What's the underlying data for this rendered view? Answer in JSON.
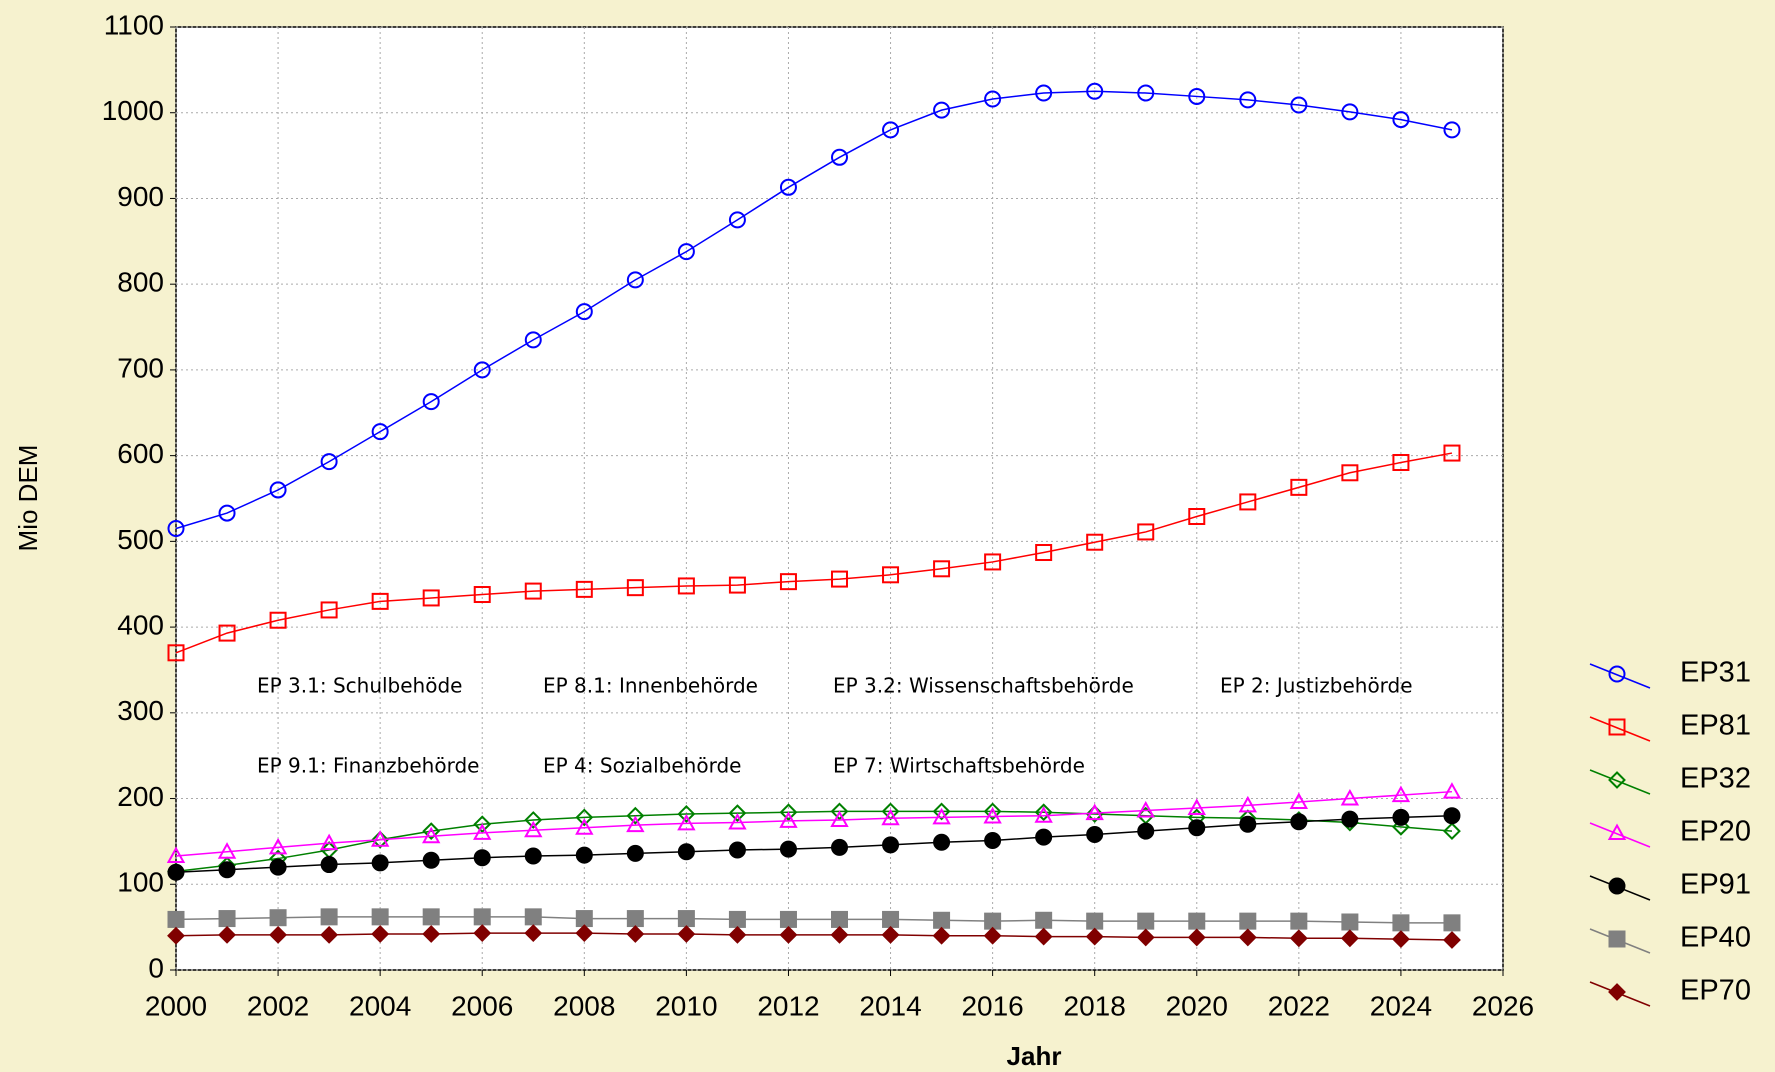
{
  "chart_data": {
    "type": "line",
    "x_label": "Jahr",
    "y_label": "Mio DEM",
    "x": [
      2000,
      2001,
      2002,
      2003,
      2004,
      2005,
      2006,
      2007,
      2008,
      2009,
      2010,
      2011,
      2012,
      2013,
      2014,
      2015,
      2016,
      2017,
      2018,
      2019,
      2020,
      2021,
      2022,
      2023,
      2024,
      2025
    ],
    "xlim": [
      2000,
      2026
    ],
    "xticks": [
      2000,
      2002,
      2004,
      2006,
      2008,
      2010,
      2012,
      2014,
      2016,
      2018,
      2020,
      2022,
      2024,
      2026
    ],
    "ylim": [
      0,
      1100
    ],
    "yticks": [
      0,
      100,
      200,
      300,
      400,
      500,
      600,
      700,
      800,
      900,
      1000,
      1100
    ],
    "grid": true,
    "legend": "right",
    "annotations": [
      "EP 3.1: Schulbehöde",
      "EP 8.1: Innenbehörde",
      "EP 3.2: Wissenschaftsbehörde",
      "EP 2: Justizbehörde",
      "EP 9.1: Finanzbehörde",
      "EP 4: Sozialbehörde",
      "EP 7: Wirtschaftsbehörde"
    ],
    "series": [
      {
        "name": "EP31",
        "color": "#0000ff",
        "marker": "circle-open",
        "values": [
          515,
          533,
          560,
          593,
          628,
          663,
          700,
          735,
          768,
          805,
          838,
          875,
          913,
          948,
          980,
          1003,
          1016,
          1023,
          1025,
          1023,
          1019,
          1015,
          1009,
          1001,
          992,
          980
        ]
      },
      {
        "name": "EP81",
        "color": "#ff0000",
        "marker": "square-open",
        "values": [
          370,
          393,
          408,
          420,
          430,
          434,
          438,
          442,
          444,
          446,
          448,
          449,
          453,
          456,
          461,
          468,
          476,
          487,
          499,
          511,
          529,
          546,
          563,
          580,
          592,
          603
        ]
      },
      {
        "name": "EP32",
        "color": "#008000",
        "marker": "diamond-open",
        "values": [
          115,
          122,
          130,
          140,
          152,
          162,
          170,
          175,
          178,
          180,
          182,
          183,
          184,
          185,
          185,
          185,
          185,
          184,
          182,
          180,
          178,
          177,
          175,
          172,
          167,
          162
        ]
      },
      {
        "name": "EP20",
        "color": "#ff00ff",
        "marker": "triangle-open",
        "values": [
          133,
          138,
          143,
          148,
          152,
          156,
          160,
          163,
          166,
          169,
          171,
          172,
          174,
          175,
          177,
          178,
          179,
          180,
          183,
          186,
          189,
          192,
          196,
          200,
          204,
          208
        ]
      },
      {
        "name": "EP91",
        "color": "#000000",
        "marker": "circle-filled",
        "values": [
          114,
          117,
          120,
          123,
          125,
          128,
          131,
          133,
          134,
          136,
          138,
          140,
          141,
          143,
          146,
          149,
          151,
          155,
          158,
          162,
          166,
          170,
          173,
          176,
          178,
          180
        ]
      },
      {
        "name": "EP40",
        "color": "#808080",
        "marker": "square-filled",
        "values": [
          59,
          60,
          61,
          62,
          62,
          62,
          62,
          62,
          60,
          60,
          60,
          59,
          59,
          59,
          59,
          58,
          57,
          58,
          57,
          57,
          57,
          57,
          57,
          56,
          55,
          55
        ]
      },
      {
        "name": "EP70",
        "color": "#800000",
        "marker": "diamond-filled",
        "values": [
          40,
          41,
          41,
          41,
          42,
          42,
          43,
          43,
          43,
          42,
          42,
          41,
          41,
          41,
          41,
          40,
          40,
          39,
          39,
          38,
          38,
          38,
          37,
          37,
          36,
          35
        ]
      }
    ]
  }
}
